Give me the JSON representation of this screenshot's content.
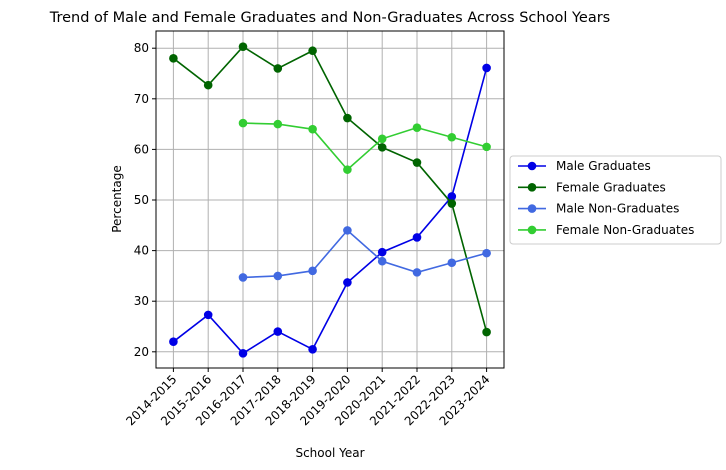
{
  "chart_data": {
    "type": "line",
    "title": "Trend of Male and Female Graduates and Non-Graduates Across School Years",
    "xlabel": "School Year",
    "ylabel": "Percentage",
    "categories": [
      "2014-2015",
      "2015-2016",
      "2016-2017",
      "2017-2018",
      "2018-2019",
      "2019-2020",
      "2020-2021",
      "2021-2022",
      "2022-2023",
      "2023-2024"
    ],
    "ylim": [
      16.8,
      83.4
    ],
    "yticks": [
      20,
      30,
      40,
      50,
      60,
      70,
      80
    ],
    "grid": true,
    "legend_position": "center-right",
    "series": [
      {
        "name": "Male Graduates",
        "color": "#0000e6",
        "values": [
          22.0,
          27.3,
          19.7,
          24.0,
          20.5,
          33.7,
          39.7,
          42.6,
          50.7,
          76.1
        ]
      },
      {
        "name": "Female Graduates",
        "color": "#006400",
        "values": [
          78.0,
          72.7,
          80.3,
          76.0,
          79.5,
          66.2,
          60.4,
          57.4,
          49.3,
          23.9
        ]
      },
      {
        "name": "Male Non-Graduates",
        "color": "#4169e1",
        "values": [
          null,
          null,
          34.7,
          35.0,
          36.0,
          44.0,
          37.9,
          35.7,
          37.6,
          39.5
        ]
      },
      {
        "name": "Female Non-Graduates",
        "color": "#32cd32",
        "values": [
          null,
          null,
          65.2,
          65.0,
          64.0,
          56.0,
          62.1,
          64.3,
          62.4,
          60.5
        ]
      }
    ]
  }
}
